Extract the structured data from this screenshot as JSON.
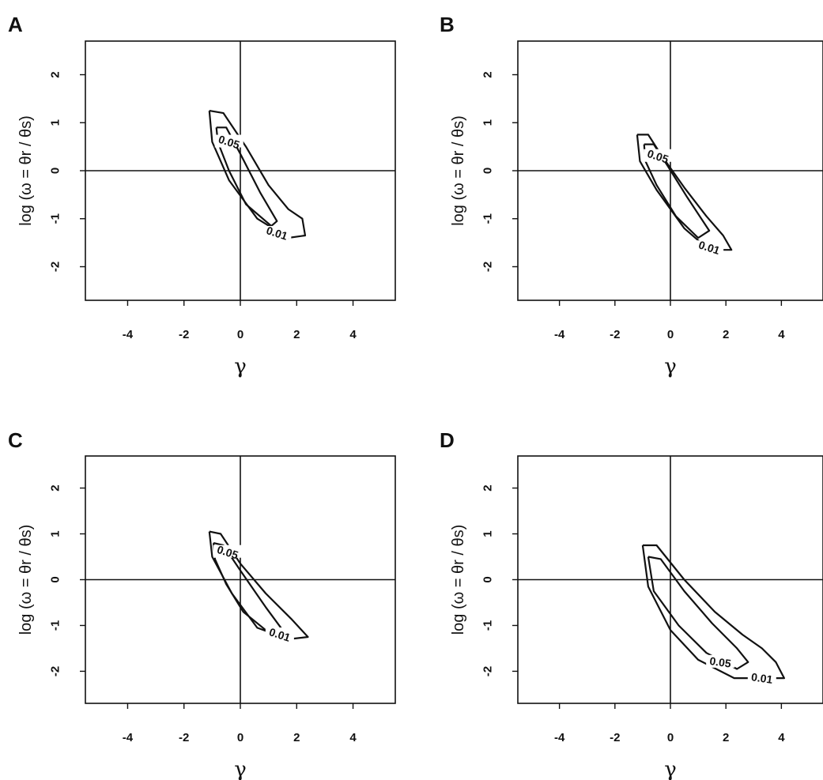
{
  "chart_data": [
    {
      "panel": "A",
      "type": "contour",
      "xlabel": "γ",
      "ylabel": "log (ω = θr / θs)",
      "xlim": [
        -5.5,
        5.5
      ],
      "ylim": [
        -2.7,
        2.7
      ],
      "xticks": [
        "-4",
        "-2",
        "0",
        "2",
        "4"
      ],
      "yticks": [
        "-2",
        "-1",
        "0",
        "1",
        "2"
      ],
      "reference_lines": {
        "x": 0,
        "y": 0
      },
      "contours": [
        {
          "level": "0.01",
          "points": [
            [
              -1.1,
              1.25
            ],
            [
              -0.6,
              1.2
            ],
            [
              0.2,
              0.5
            ],
            [
              1.0,
              -0.3
            ],
            [
              1.7,
              -0.8
            ],
            [
              2.2,
              -1.0
            ],
            [
              2.3,
              -1.35
            ],
            [
              1.7,
              -1.4
            ],
            [
              0.6,
              -1.0
            ],
            [
              -0.4,
              -0.2
            ],
            [
              -1.0,
              0.6
            ],
            [
              -1.1,
              1.25
            ]
          ]
        },
        {
          "level": "0.05",
          "points": [
            [
              -0.85,
              0.9
            ],
            [
              -0.5,
              0.9
            ],
            [
              0.0,
              0.35
            ],
            [
              0.7,
              -0.45
            ],
            [
              1.3,
              -1.05
            ],
            [
              1.1,
              -1.15
            ],
            [
              0.2,
              -0.7
            ],
            [
              -0.4,
              0.0
            ],
            [
              -0.8,
              0.6
            ],
            [
              -0.85,
              0.9
            ]
          ]
        }
      ],
      "label_positions": {
        "0.05": [
          -0.4,
          0.6
        ],
        "0.01": [
          1.3,
          -1.3
        ]
      }
    },
    {
      "panel": "B",
      "type": "contour",
      "xlabel": "γ",
      "ylabel": "log (ω = θr / θs)",
      "xlim": [
        -5.5,
        5.5
      ],
      "ylim": [
        -2.7,
        2.7
      ],
      "xticks": [
        "-4",
        "-2",
        "0",
        "2",
        "4"
      ],
      "yticks": [
        "-2",
        "-1",
        "0",
        "1",
        "2"
      ],
      "reference_lines": {
        "x": 0,
        "y": 0
      },
      "contours": [
        {
          "level": "0.01",
          "points": [
            [
              -1.2,
              0.75
            ],
            [
              -0.8,
              0.75
            ],
            [
              -0.3,
              0.3
            ],
            [
              0.5,
              -0.35
            ],
            [
              1.3,
              -0.95
            ],
            [
              1.9,
              -1.35
            ],
            [
              2.2,
              -1.65
            ],
            [
              1.4,
              -1.65
            ],
            [
              0.5,
              -1.2
            ],
            [
              -0.5,
              -0.4
            ],
            [
              -1.1,
              0.2
            ],
            [
              -1.2,
              0.75
            ]
          ]
        },
        {
          "level": "0.05",
          "points": [
            [
              -0.95,
              0.55
            ],
            [
              -0.6,
              0.55
            ],
            [
              -0.1,
              0.1
            ],
            [
              0.6,
              -0.55
            ],
            [
              1.4,
              -1.25
            ],
            [
              1.0,
              -1.4
            ],
            [
              0.2,
              -0.95
            ],
            [
              -0.5,
              -0.3
            ],
            [
              -0.9,
              0.2
            ],
            [
              -0.95,
              0.55
            ]
          ]
        }
      ],
      "label_positions": {
        "0.05": [
          -0.45,
          0.3
        ],
        "0.01": [
          1.4,
          -1.6
        ]
      }
    },
    {
      "panel": "C",
      "type": "contour",
      "xlabel": "γ",
      "ylabel": "log (ω = θr / θs)",
      "xlim": [
        -5.5,
        5.5
      ],
      "ylim": [
        -2.7,
        2.7
      ],
      "xticks": [
        "-4",
        "-2",
        "0",
        "2",
        "4"
      ],
      "yticks": [
        "-2",
        "-1",
        "0",
        "1",
        "2"
      ],
      "reference_lines": {
        "x": 0,
        "y": 0
      },
      "contours": [
        {
          "level": "0.01",
          "points": [
            [
              -1.1,
              1.05
            ],
            [
              -0.7,
              1.0
            ],
            [
              0.0,
              0.35
            ],
            [
              0.9,
              -0.3
            ],
            [
              1.8,
              -0.85
            ],
            [
              2.4,
              -1.25
            ],
            [
              1.7,
              -1.3
            ],
            [
              0.6,
              -1.05
            ],
            [
              -0.3,
              -0.3
            ],
            [
              -1.0,
              0.5
            ],
            [
              -1.1,
              1.05
            ]
          ]
        },
        {
          "level": "0.05",
          "points": [
            [
              -0.95,
              0.8
            ],
            [
              -0.6,
              0.75
            ],
            [
              0.0,
              0.2
            ],
            [
              0.9,
              -0.6
            ],
            [
              1.5,
              -1.1
            ],
            [
              0.9,
              -1.1
            ],
            [
              0.1,
              -0.7
            ],
            [
              -0.5,
              -0.1
            ],
            [
              -0.9,
              0.45
            ],
            [
              -0.95,
              0.8
            ]
          ]
        }
      ],
      "label_positions": {
        "0.05": [
          -0.45,
          0.6
        ],
        "0.01": [
          1.4,
          -1.2
        ]
      }
    },
    {
      "panel": "D",
      "type": "contour",
      "xlabel": "γ",
      "ylabel": "log (ω = θr / θs)",
      "xlim": [
        -5.5,
        5.5
      ],
      "ylim": [
        -2.7,
        2.7
      ],
      "xticks": [
        "-4",
        "-2",
        "0",
        "2",
        "4"
      ],
      "yticks": [
        "-2",
        "-1",
        "0",
        "1",
        "2"
      ],
      "reference_lines": {
        "x": 0,
        "y": 0
      },
      "contours": [
        {
          "level": "0.01",
          "points": [
            [
              -1.0,
              0.75
            ],
            [
              -0.5,
              0.75
            ],
            [
              0.5,
              0.0
            ],
            [
              1.6,
              -0.7
            ],
            [
              2.6,
              -1.2
            ],
            [
              3.3,
              -1.5
            ],
            [
              3.8,
              -1.8
            ],
            [
              4.1,
              -2.15
            ],
            [
              3.4,
              -2.15
            ],
            [
              2.3,
              -2.15
            ],
            [
              1.0,
              -1.75
            ],
            [
              0.0,
              -1.1
            ],
            [
              -0.8,
              -0.15
            ],
            [
              -1.0,
              0.75
            ]
          ]
        },
        {
          "level": "0.05",
          "points": [
            [
              -0.8,
              0.5
            ],
            [
              -0.35,
              0.45
            ],
            [
              0.5,
              -0.25
            ],
            [
              1.5,
              -0.95
            ],
            [
              2.4,
              -1.5
            ],
            [
              2.8,
              -1.8
            ],
            [
              2.4,
              -1.95
            ],
            [
              1.3,
              -1.6
            ],
            [
              0.3,
              -1.0
            ],
            [
              -0.6,
              -0.25
            ],
            [
              -0.8,
              0.5
            ]
          ]
        }
      ],
      "label_positions": {
        "0.05": [
          1.8,
          -1.8
        ],
        "0.01": [
          3.3,
          -2.15
        ]
      }
    }
  ]
}
